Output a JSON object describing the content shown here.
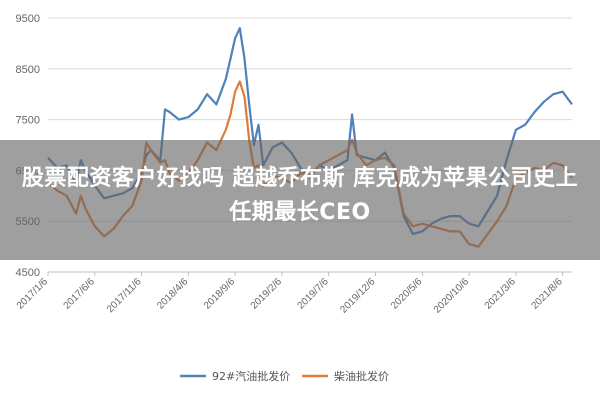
{
  "headline": "股票配资客户好找吗 超越乔布斯 库克成为苹果公司史上任期最长CEO",
  "chart_data": {
    "type": "line",
    "ylim": [
      4500,
      9500
    ],
    "yticks": [
      "9500",
      "8500",
      "7500",
      "6500",
      "5500",
      "4500"
    ],
    "ytick_values": [
      9500,
      8500,
      7500,
      6500,
      5500,
      4500
    ],
    "x_tick_labels": [
      "2017/1/6",
      "2017/6/6",
      "2017/11/6",
      "2018/4/6",
      "2018/9/6",
      "2019/2/6",
      "2019/7/6",
      "2019/12/6",
      "2020/5/6",
      "2020/10/6",
      "2021/3/6",
      "2021/8/6"
    ],
    "x_tick_positions": [
      0,
      5,
      10,
      15,
      20,
      25,
      30,
      35,
      40,
      45,
      50,
      55
    ],
    "legend_position": "bottom",
    "grid": true,
    "series": [
      {
        "name": "92#汽油批发价",
        "color": "#4f81bd",
        "points": [
          [
            0,
            6750
          ],
          [
            1,
            6550
          ],
          [
            2,
            6600
          ],
          [
            3,
            6250
          ],
          [
            3.5,
            6700
          ],
          [
            4,
            6500
          ],
          [
            5,
            6200
          ],
          [
            6,
            5950
          ],
          [
            7,
            6000
          ],
          [
            8,
            6050
          ],
          [
            9,
            6150
          ],
          [
            10,
            6450
          ],
          [
            10.5,
            6800
          ],
          [
            11,
            6900
          ],
          [
            12,
            6700
          ],
          [
            12.5,
            7700
          ],
          [
            13,
            7650
          ],
          [
            14,
            7500
          ],
          [
            15,
            7550
          ],
          [
            16,
            7700
          ],
          [
            17,
            8000
          ],
          [
            18,
            7800
          ],
          [
            19,
            8300
          ],
          [
            19.5,
            8700
          ],
          [
            20,
            9100
          ],
          [
            20.5,
            9300
          ],
          [
            21,
            8700
          ],
          [
            21.5,
            7800
          ],
          [
            22,
            7000
          ],
          [
            22.5,
            7400
          ],
          [
            23,
            6600
          ],
          [
            24,
            6950
          ],
          [
            25,
            7050
          ],
          [
            26,
            6850
          ],
          [
            27,
            6550
          ],
          [
            28,
            6350
          ],
          [
            29,
            6600
          ],
          [
            30,
            6500
          ],
          [
            31,
            6600
          ],
          [
            32,
            6700
          ],
          [
            32.5,
            7600
          ],
          [
            33,
            6800
          ],
          [
            34,
            6750
          ],
          [
            35,
            6700
          ],
          [
            36,
            6850
          ],
          [
            37,
            6550
          ],
          [
            38,
            5600
          ],
          [
            39,
            5250
          ],
          [
            40,
            5300
          ],
          [
            41,
            5450
          ],
          [
            42,
            5550
          ],
          [
            43,
            5600
          ],
          [
            44,
            5600
          ],
          [
            45,
            5450
          ],
          [
            46,
            5400
          ],
          [
            47,
            5700
          ],
          [
            48,
            6000
          ],
          [
            49,
            6700
          ],
          [
            50,
            7300
          ],
          [
            51,
            7400
          ],
          [
            52,
            7650
          ],
          [
            53,
            7850
          ],
          [
            54,
            8000
          ],
          [
            55,
            8050
          ],
          [
            56,
            7800
          ]
        ]
      },
      {
        "name": "柴油批发价",
        "color": "#e07b39",
        "points": [
          [
            0,
            6250
          ],
          [
            1,
            6100
          ],
          [
            2,
            6000
          ],
          [
            3,
            5650
          ],
          [
            3.5,
            6000
          ],
          [
            4,
            5750
          ],
          [
            5,
            5400
          ],
          [
            6,
            5200
          ],
          [
            7,
            5350
          ],
          [
            8,
            5600
          ],
          [
            9,
            5800
          ],
          [
            10,
            6300
          ],
          [
            10.5,
            7050
          ],
          [
            11,
            6900
          ],
          [
            12,
            6650
          ],
          [
            12.5,
            6700
          ],
          [
            13,
            6450
          ],
          [
            14,
            6300
          ],
          [
            15,
            6450
          ],
          [
            16,
            6700
          ],
          [
            17,
            7050
          ],
          [
            18,
            6900
          ],
          [
            19,
            7300
          ],
          [
            19.5,
            7600
          ],
          [
            20,
            8050
          ],
          [
            20.5,
            8250
          ],
          [
            21,
            7950
          ],
          [
            21.5,
            7100
          ],
          [
            22,
            6550
          ],
          [
            22.5,
            6600
          ],
          [
            23,
            6200
          ],
          [
            24,
            6400
          ],
          [
            25,
            6350
          ],
          [
            26,
            6250
          ],
          [
            27,
            6450
          ],
          [
            28,
            6400
          ],
          [
            29,
            6600
          ],
          [
            30,
            6700
          ],
          [
            31,
            6800
          ],
          [
            32,
            6900
          ],
          [
            32.5,
            7100
          ],
          [
            33,
            6850
          ],
          [
            34,
            6600
          ],
          [
            35,
            6700
          ],
          [
            36,
            6750
          ],
          [
            37,
            6600
          ],
          [
            38,
            5650
          ],
          [
            39,
            5400
          ],
          [
            40,
            5450
          ],
          [
            41,
            5400
          ],
          [
            42,
            5350
          ],
          [
            43,
            5300
          ],
          [
            44,
            5300
          ],
          [
            45,
            5050
          ],
          [
            46,
            5000
          ],
          [
            47,
            5250
          ],
          [
            48,
            5500
          ],
          [
            49,
            5800
          ],
          [
            50,
            6350
          ],
          [
            51,
            6450
          ],
          [
            52,
            6550
          ],
          [
            53,
            6500
          ],
          [
            54,
            6650
          ],
          [
            55,
            6600
          ],
          [
            56,
            6350
          ]
        ]
      }
    ]
  }
}
